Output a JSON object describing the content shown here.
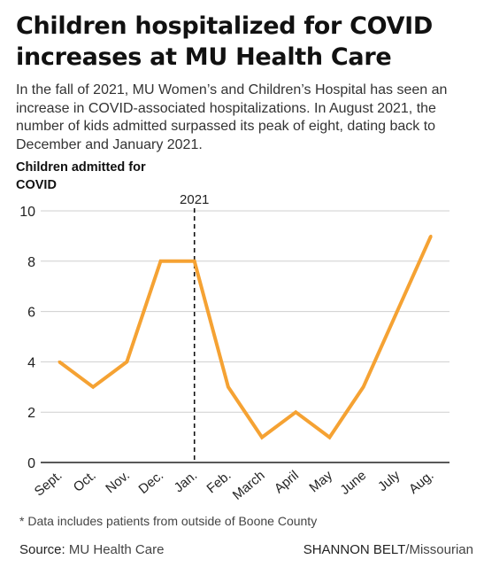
{
  "header": {
    "title": "Children hospitalized for COVID increases at MU Health Care",
    "subtitle": "In the fall of 2021, MU Women’s and Children’s Hospital has seen an increase in COVID-associated hospitalizations. In August 2021, the number of kids admitted surpassed its peak of eight, dating back to December and January 2021."
  },
  "chart_data": {
    "type": "line",
    "ylabel": "Children admitted for COVID",
    "categories": [
      "Sept.",
      "Oct.",
      "Nov.",
      "Dec.",
      "Jan.",
      "Feb.",
      "March",
      "April",
      "May",
      "June",
      "July",
      "Aug."
    ],
    "series": [
      {
        "values": [
          4,
          3,
          4,
          8,
          8,
          3,
          1,
          2,
          1,
          3,
          6,
          9
        ]
      }
    ],
    "ylim": [
      0,
      10
    ],
    "yticks": [
      0,
      2,
      4,
      6,
      8,
      10
    ],
    "grid": true,
    "marker": {
      "category": "Jan.",
      "label": "2021"
    },
    "colors": {
      "line": "#f5a233",
      "grid": "#cfcfcf",
      "axis": "#222222",
      "marker": "#111111"
    }
  },
  "footer": {
    "footnote": "* Data includes patients from outside of Boone County",
    "source_label": "Source:",
    "source_value": "MU Health Care",
    "credit_name": "SHANNON BELT",
    "credit_org": "/Missourian"
  }
}
